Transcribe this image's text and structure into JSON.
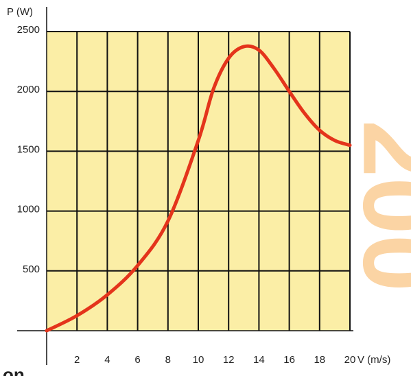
{
  "chart_data": {
    "type": "line",
    "watermark": "200",
    "caption": "on",
    "x_axis_label": "V (m/s)",
    "y_axis_label": "P (W)",
    "x": [
      0,
      2,
      4,
      6,
      8,
      10,
      11,
      12,
      13,
      14,
      15,
      16,
      17,
      18,
      19,
      20
    ],
    "series": [
      {
        "color": "#e4341b",
        "values": [
          0,
          126,
          300,
          545,
          917,
          1590,
          2020,
          2277,
          2374,
          2345,
          2190,
          2000,
          1818,
          1675,
          1590,
          1550
        ]
      }
    ],
    "xlim": [
      0,
      20
    ],
    "xticks": [
      2,
      4,
      6,
      8,
      10,
      12,
      14,
      16,
      18,
      20
    ],
    "ylim": [
      0,
      2500
    ],
    "yticks": [
      500,
      1000,
      1500,
      2000,
      2500
    ],
    "grid": true,
    "plot_background": "#fbeea6"
  }
}
